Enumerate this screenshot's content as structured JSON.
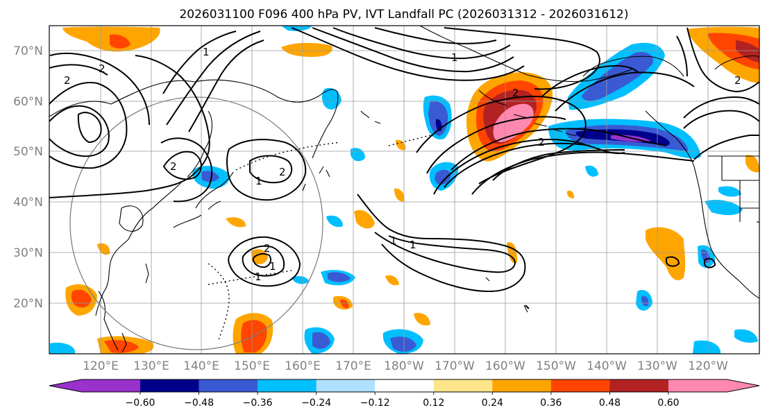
{
  "title": "2026031100 F096 400 hPa PV, IVT Landfall PC (2026031312 - 2026031612)",
  "map": {
    "lat_labels": [
      "70°N",
      "60°N",
      "50°N",
      "40°N",
      "30°N",
      "20°N"
    ],
    "lon_labels": [
      "120°E",
      "130°E",
      "140°E",
      "150°E",
      "160°E",
      "170°E",
      "180°W",
      "170°W",
      "160°W",
      "150°W",
      "140°W",
      "130°W",
      "120°W"
    ],
    "contour_labels": [
      "2",
      "2",
      "1",
      "2",
      "2",
      "1",
      "2",
      "1",
      "1",
      "1",
      "1",
      "2",
      "2",
      "2",
      "1"
    ]
  },
  "colorbar": {
    "colors": [
      "#9932cc",
      "#00008b",
      "#3a5ad3",
      "#00bfff",
      "#b0e0ff",
      "#ffffff",
      "#fde68a",
      "#ffa500",
      "#ff4500",
      "#b22222",
      "#ff88b0"
    ],
    "ticks": [
      "−0.60",
      "−0.48",
      "−0.36",
      "−0.24",
      "−0.12",
      "0.12",
      "0.24",
      "0.36",
      "0.48",
      "0.60"
    ]
  }
}
